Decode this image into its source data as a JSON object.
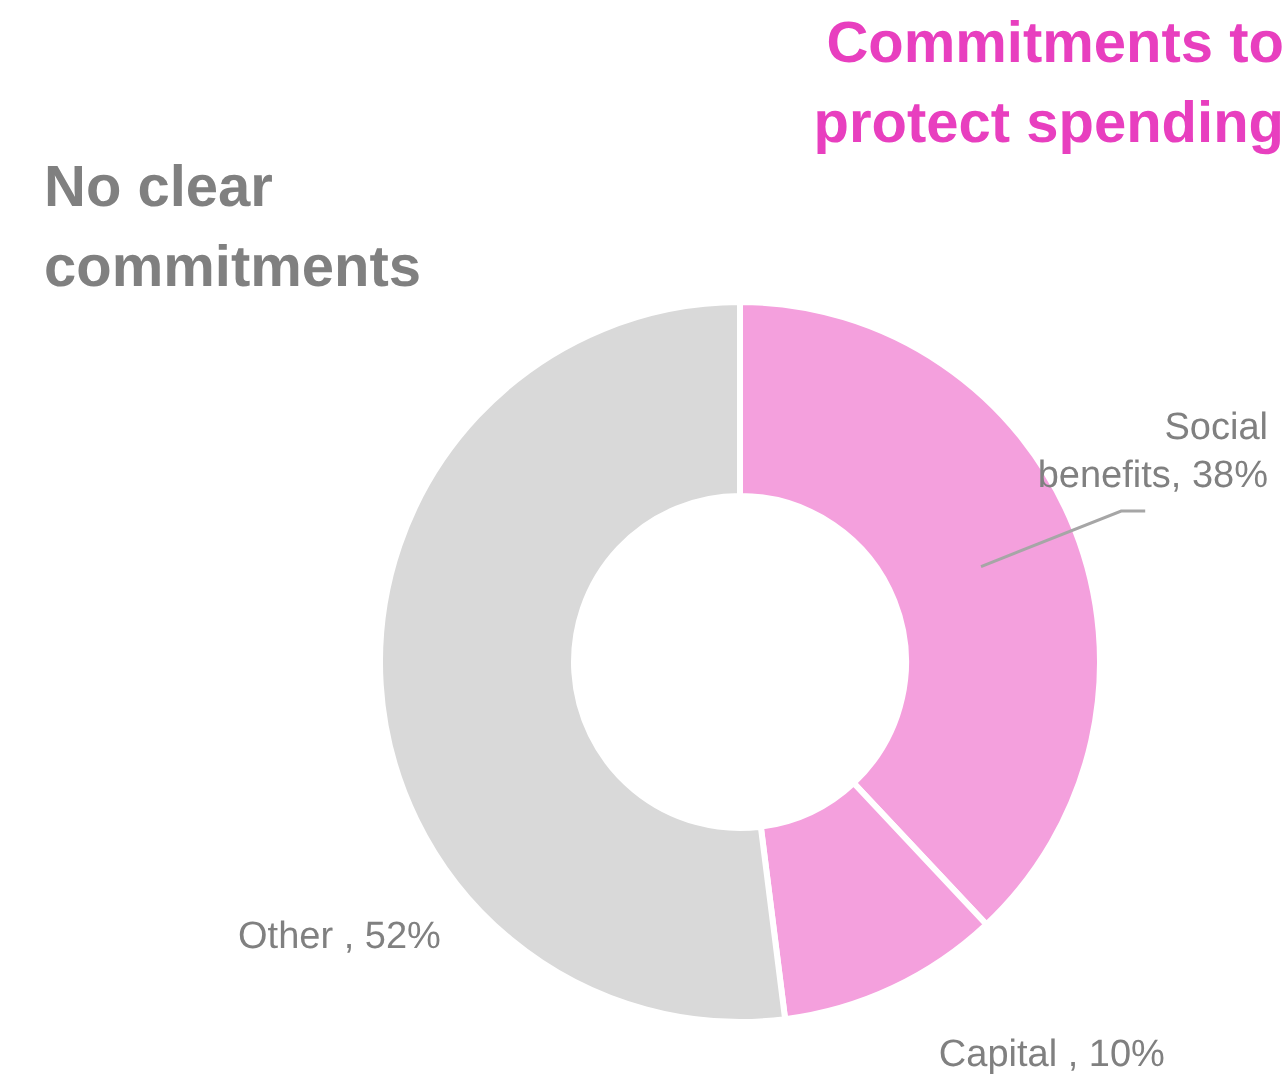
{
  "chart_data": {
    "type": "donut",
    "categories": [
      "Social benefits",
      "Capital",
      "Other"
    ],
    "values": [
      38,
      10,
      52
    ],
    "value_labels": [
      "38%",
      "10%",
      "52%"
    ],
    "colors": [
      "#f4a0dd",
      "#f4a0dd",
      "#d9d9d9"
    ],
    "annotations": [
      "Commitments to protect spending",
      "No clear commitments"
    ]
  }
}
